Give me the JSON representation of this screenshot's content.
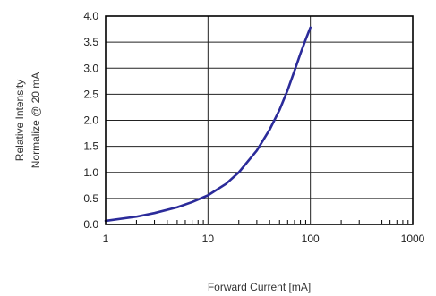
{
  "chart_data": {
    "type": "line",
    "x_scale": "log",
    "xlabel": "Forward Current [mA]",
    "ylabel_lines": [
      "Relative Intensity",
      "Normalize @ 20 mA"
    ],
    "xlim": [
      1,
      1000
    ],
    "ylim": [
      0,
      4
    ],
    "x_ticks": [
      "1",
      "10",
      "100",
      "1000"
    ],
    "y_ticks": [
      "0.0",
      "0.5",
      "1.0",
      "1.5",
      "2.0",
      "2.5",
      "3.0",
      "3.5",
      "4.0"
    ],
    "grid": true,
    "legend": "none",
    "line_color": "#2b2b9a",
    "series": [
      {
        "x": [
          1,
          2,
          3,
          5,
          7,
          10,
          15,
          20,
          30,
          40,
          50,
          60,
          70,
          80,
          90,
          100
        ],
        "y": [
          0.07,
          0.15,
          0.22,
          0.33,
          0.43,
          0.56,
          0.78,
          1.0,
          1.42,
          1.82,
          2.2,
          2.58,
          2.95,
          3.28,
          3.55,
          3.78
        ]
      }
    ]
  }
}
